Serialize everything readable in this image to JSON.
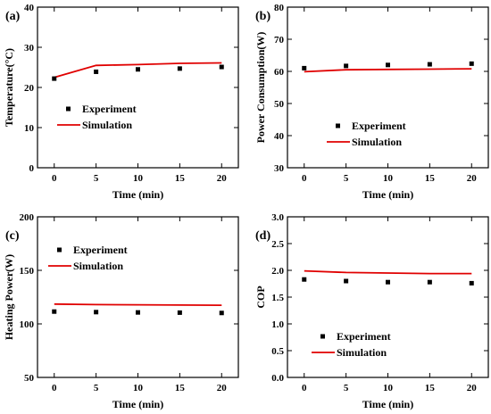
{
  "colors": {
    "experiment": "#000000",
    "simulation": "#e00000",
    "axis": "#000000"
  },
  "chart_data": [
    {
      "panel_label": "(a)",
      "type": "line",
      "xlabel": "Time (min)",
      "ylabel": "Temperature(°C)",
      "xlim": [
        -2,
        22
      ],
      "ylim": [
        0,
        40
      ],
      "xticks": [
        0,
        5,
        10,
        15,
        20
      ],
      "yticks": [
        0,
        10,
        20,
        30,
        40
      ],
      "legend": {
        "position": "middle-left",
        "entries": [
          "Experiment",
          "Simulation"
        ]
      },
      "series": [
        {
          "name": "Experiment",
          "kind": "scatter",
          "x": [
            0,
            5,
            10,
            15,
            20
          ],
          "y": [
            22.2,
            23.9,
            24.5,
            24.7,
            25.1
          ]
        },
        {
          "name": "Simulation",
          "kind": "line",
          "x": [
            0,
            5,
            10,
            15,
            20
          ],
          "y": [
            22.5,
            25.5,
            25.7,
            26.0,
            26.1
          ]
        }
      ]
    },
    {
      "panel_label": "(b)",
      "type": "line",
      "xlabel": "Time (min)",
      "ylabel": "Power Consumption(W)",
      "xlim": [
        -2,
        22
      ],
      "ylim": [
        30,
        80
      ],
      "xticks": [
        0,
        5,
        10,
        15,
        20
      ],
      "yticks": [
        30,
        40,
        50,
        60,
        70,
        80
      ],
      "legend": {
        "position": "middle-left",
        "entries": [
          "Experiment",
          "Simulation"
        ]
      },
      "series": [
        {
          "name": "Experiment",
          "kind": "scatter",
          "x": [
            0,
            5,
            10,
            15,
            20
          ],
          "y": [
            61.0,
            61.7,
            62.0,
            62.2,
            62.4
          ]
        },
        {
          "name": "Simulation",
          "kind": "line",
          "x": [
            0,
            5,
            10,
            15,
            20
          ],
          "y": [
            59.9,
            60.5,
            60.6,
            60.7,
            60.8
          ]
        }
      ]
    },
    {
      "panel_label": "(c)",
      "type": "line",
      "xlabel": "Time (min)",
      "ylabel": "Heating Power(W)",
      "xlim": [
        -2,
        22
      ],
      "ylim": [
        50,
        200
      ],
      "xticks": [
        0,
        5,
        10,
        15,
        20
      ],
      "yticks": [
        50,
        100,
        150,
        200
      ],
      "legend": {
        "position": "top-left",
        "entries": [
          "Experiment",
          "Simulation"
        ]
      },
      "series": [
        {
          "name": "Experiment",
          "kind": "scatter",
          "x": [
            0,
            5,
            10,
            15,
            20
          ],
          "y": [
            111.5,
            111.0,
            110.7,
            110.5,
            110.2
          ]
        },
        {
          "name": "Simulation",
          "kind": "line",
          "x": [
            0,
            5,
            10,
            15,
            20
          ],
          "y": [
            118.5,
            118.0,
            117.8,
            117.6,
            117.4
          ]
        }
      ]
    },
    {
      "panel_label": "(d)",
      "type": "line",
      "xlabel": "Time (min)",
      "ylabel": "COP",
      "xlim": [
        -2,
        22
      ],
      "ylim": [
        0,
        3.0
      ],
      "xticks": [
        0,
        5,
        10,
        15,
        20
      ],
      "yticks": [
        0.0,
        0.5,
        1.0,
        1.5,
        2.0,
        2.5,
        3.0
      ],
      "ytick_labels": [
        "0.0",
        "0.5",
        "1.0",
        "1.5",
        "2.0",
        "2.5",
        "3.0"
      ],
      "legend": {
        "position": "bottom-left",
        "entries": [
          "Experiment",
          "Simulation"
        ]
      },
      "series": [
        {
          "name": "Experiment",
          "kind": "scatter",
          "x": [
            0,
            5,
            10,
            15,
            20
          ],
          "y": [
            1.83,
            1.8,
            1.78,
            1.78,
            1.76
          ]
        },
        {
          "name": "Simulation",
          "kind": "line",
          "x": [
            0,
            5,
            10,
            15,
            20
          ],
          "y": [
            1.99,
            1.96,
            1.95,
            1.94,
            1.94
          ]
        }
      ]
    }
  ]
}
